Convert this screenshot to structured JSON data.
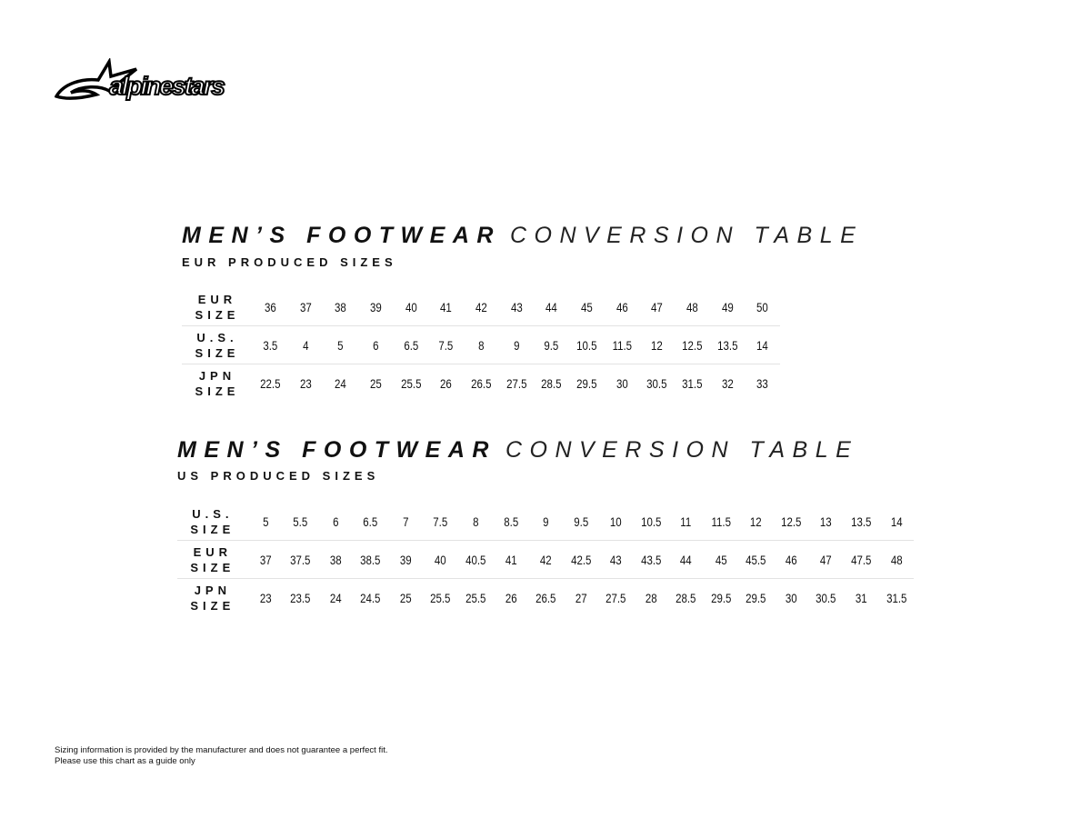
{
  "brand": {
    "logo_text": "alpinestars"
  },
  "tables": [
    {
      "title_bold": "MEN’S FOOTWEAR",
      "title_light": "CONVERSION TABLE",
      "subtitle": "EUR PRODUCED SIZES",
      "rows": [
        {
          "label": [
            "EUR",
            "SIZE"
          ],
          "values": [
            "36",
            "37",
            "38",
            "39",
            "40",
            "41",
            "42",
            "43",
            "44",
            "45",
            "46",
            "47",
            "48",
            "49",
            "50"
          ]
        },
        {
          "label": [
            "U.S.",
            "SIZE"
          ],
          "values": [
            "3.5",
            "4",
            "5",
            "6",
            "6.5",
            "7.5",
            "8",
            "9",
            "9.5",
            "10.5",
            "11.5",
            "12",
            "12.5",
            "13.5",
            "14"
          ]
        },
        {
          "label": [
            "JPN",
            "SIZE"
          ],
          "values": [
            "22.5",
            "23",
            "24",
            "25",
            "25.5",
            "26",
            "26.5",
            "27.5",
            "28.5",
            "29.5",
            "30",
            "30.5",
            "31.5",
            "32",
            "33"
          ]
        }
      ]
    },
    {
      "title_bold": "MEN’S FOOTWEAR",
      "title_light": "CONVERSION TABLE",
      "subtitle": "US PRODUCED SIZES",
      "rows": [
        {
          "label": [
            "U.S.",
            "SIZE"
          ],
          "values": [
            "5",
            "5.5",
            "6",
            "6.5",
            "7",
            "7.5",
            "8",
            "8.5",
            "9",
            "9.5",
            "10",
            "10.5",
            "11",
            "11.5",
            "12",
            "12.5",
            "13",
            "13.5",
            "14"
          ]
        },
        {
          "label": [
            "EUR",
            "SIZE"
          ],
          "values": [
            "37",
            "37.5",
            "38",
            "38.5",
            "39",
            "40",
            "40.5",
            "41",
            "42",
            "42.5",
            "43",
            "43.5",
            "44",
            "45",
            "45.5",
            "46",
            "47",
            "47.5",
            "48"
          ]
        },
        {
          "label": [
            "JPN",
            "SIZE"
          ],
          "values": [
            "23",
            "23.5",
            "24",
            "24.5",
            "25",
            "25.5",
            "25.5",
            "26",
            "26.5",
            "27",
            "27.5",
            "28",
            "28.5",
            "29.5",
            "29.5",
            "30",
            "30.5",
            "31",
            "31.5"
          ]
        }
      ]
    }
  ],
  "footer": {
    "line1": "Sizing information is provided by the manufacturer and does not guarantee a perfect fit.",
    "line2": "Please use this chart as a guide only"
  }
}
